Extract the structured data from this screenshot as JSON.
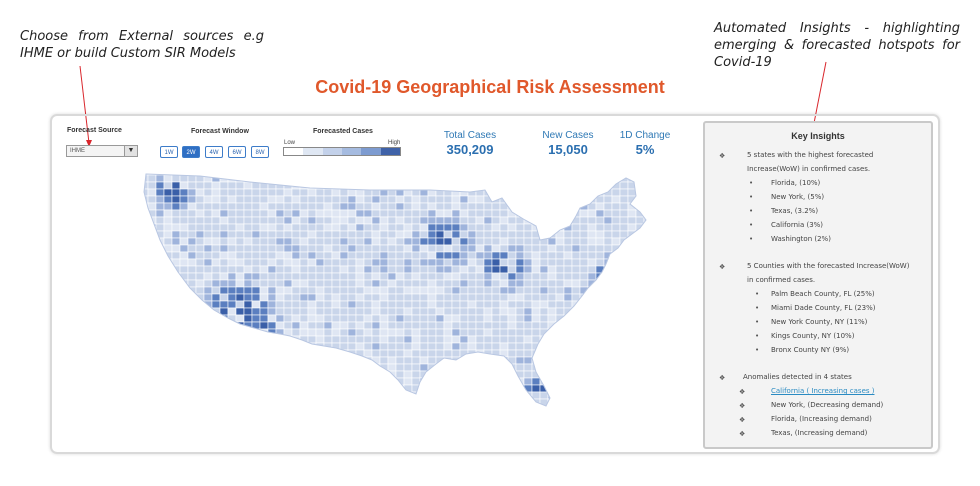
{
  "annotations": {
    "left_lines": [
      "Choose from External sources e.g",
      "IHME or build Custom SIR Models"
    ],
    "right_lines": [
      "Automated Insights - highlighting",
      "emerging & forecasted hotspots for",
      "Covid-19"
    ]
  },
  "title": "Covid-19 Geographical Risk Assessment",
  "controls": {
    "source_label": "Forecast Source",
    "source_value": "IHME",
    "window_label": "Forecast Window",
    "window_options": [
      "1W",
      "2W",
      "4W",
      "6W",
      "8W"
    ],
    "window_active_index": 1,
    "cases_label": "Forecasted Cases",
    "legend_low": "Low",
    "legend_high": "High",
    "legend_colors": [
      "#ffffff",
      "#dfe7f3",
      "#c3d1ea",
      "#a5bbe0",
      "#7d9bd0",
      "#3f62a8"
    ]
  },
  "kpis": [
    {
      "label": "Total Cases",
      "value": "350,209"
    },
    {
      "label": "New Cases",
      "value": "15,050"
    },
    {
      "label": "1D Change",
      "value": "5%"
    }
  ],
  "insights": {
    "title": "Key Insights",
    "section1_lines": [
      "5 states with the highest forecasted",
      "Increase(WoW) in confirmed cases."
    ],
    "section1_items": [
      "Florida, (10%)",
      "New York, (5%)",
      "Texas, (3.2%)",
      "California (3%)",
      "Washington (2%)"
    ],
    "section2_lines": [
      "5 Counties with the forecasted Increase(WoW)",
      "in confirmed cases."
    ],
    "section2_items": [
      "Palm Beach County, FL (25%)",
      "Miami Dade County, FL (23%)",
      "New York County, NY (11%)",
      "Kings County, NY (10%)",
      "Bronx County NY (9%)"
    ],
    "section3_line": "Anomalies detected in 4  states",
    "section3_items": [
      "California ( Increasing cases )",
      "New York, (Decreasing demand)",
      "Florida, (Increasing demand)",
      "Texas, (Increasing demand)"
    ]
  },
  "map_colors": {
    "base": "#c9d5ea",
    "light": "#dfe6f3",
    "mid": "#9fb4dc",
    "dark": "#5b7fc0",
    "darkest": "#3a5fa8",
    "border": "#ffffff",
    "accent_title": "#e0582b",
    "kpi_blue": "#2b6fb0",
    "arrow_red": "#d9262c"
  }
}
